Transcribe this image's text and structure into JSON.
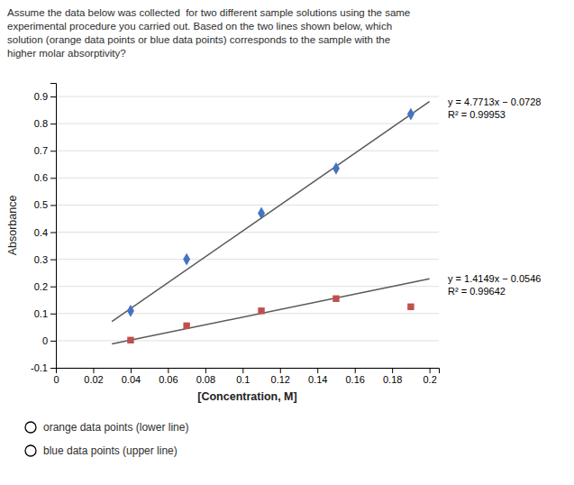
{
  "chart_data": {
    "type": "scatter",
    "title": [
      "Assume the data below was collected  for two different sample solutions using the same",
      "experimental procedure you carried out. Based on the two lines shown below, which",
      "solution (orange data points or blue data points) corresponds to the sample with the",
      "higher molar absorptivity?"
    ],
    "x_label": "[Concentration, M]",
    "y_label": "Absorbance",
    "xlim": [
      0,
      0.205
    ],
    "ylim": [
      -0.1,
      0.95
    ],
    "xticks": [
      0,
      0.02,
      0.04,
      0.06,
      0.08,
      0.1,
      0.12,
      0.14,
      0.16,
      0.18,
      0.2
    ],
    "yticks": [
      -0.1,
      0,
      0.1,
      0.2,
      0.3,
      0.4,
      0.5,
      0.6,
      0.7,
      0.8,
      0.9
    ],
    "grid": "y",
    "series": [
      {
        "type": "line",
        "color": "#595959",
        "x": [
          0.03,
          0.2
        ],
        "values": [
          0.070339,
          0.88146
        ],
        "annotations": [
          "y = 4.7713x − 0.0728",
          "R² = 0.99953"
        ]
      },
      {
        "type": "line",
        "color": "#595959",
        "x": [
          0.03,
          0.2
        ],
        "values": [
          -0.012153,
          0.22838
        ],
        "annotations": [
          "y = 1.4149x − 0.0546",
          "R² = 0.99642"
        ]
      },
      {
        "type": "scatter",
        "marker": "diamond",
        "color": "#4472C4",
        "x": [
          0.04,
          0.07,
          0.11,
          0.15,
          0.19
        ],
        "values": [
          0.11,
          0.3,
          0.47,
          0.635,
          0.835
        ]
      },
      {
        "type": "scatter",
        "marker": "square",
        "color": "#C0504D",
        "x": [
          0.04,
          0.07,
          0.11,
          0.15,
          0.19
        ],
        "values": [
          0.002,
          0.055,
          0.11,
          0.155,
          0.125
        ]
      }
    ],
    "annotations": [
      "orange data points (lower line)",
      "blue data points (upper line)"
    ]
  }
}
